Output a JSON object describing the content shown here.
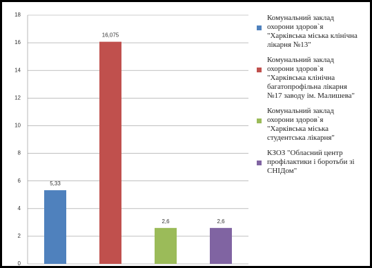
{
  "chart_data": {
    "type": "bar",
    "categories": [
      null
    ],
    "series": [
      {
        "name": "Комунальний заклад охорони здоров`я \"Харківська міська клінічна лікарня №13\"",
        "color": "#4f81bd",
        "values": [
          5.33
        ],
        "value_labels": [
          "5,33"
        ]
      },
      {
        "name": "Комунальний заклад охорони здоров`я \"Харківська клінічна багатопрофільна лікарня №17 заводу ім. Малишева\"",
        "color": "#c0504d",
        "values": [
          16.075
        ],
        "value_labels": [
          "16,075"
        ]
      },
      {
        "name": "Комунальний заклад охорони здоров`я \"Харківська міська студентська лікарня\"",
        "color": "#9bbb59",
        "values": [
          2.6
        ],
        "value_labels": [
          "2,6"
        ]
      },
      {
        "name": "КЗОЗ \"Обласний центр профілактики і боротьби зі СНІДом\"",
        "color": "#8064a2",
        "values": [
          2.6
        ],
        "value_labels": [
          "2,6"
        ]
      }
    ],
    "ylim": [
      0,
      18
    ],
    "yticks": [
      0,
      2,
      4,
      6,
      8,
      10,
      12,
      14,
      16,
      18
    ],
    "grid": true
  }
}
